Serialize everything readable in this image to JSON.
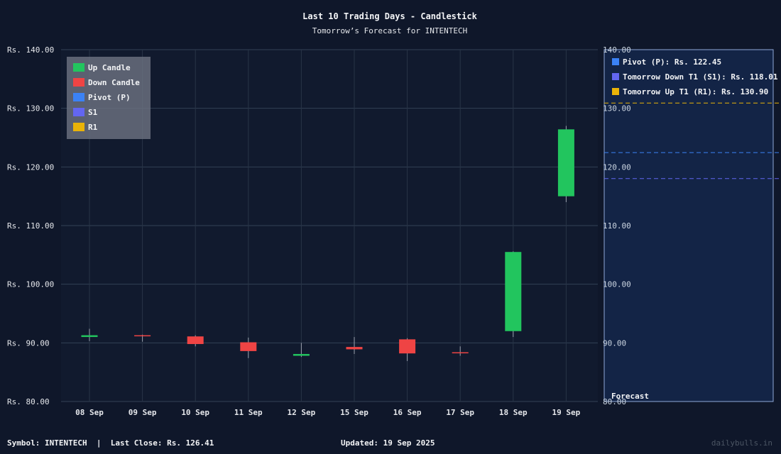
{
  "chart_data": {
    "type": "candlestick",
    "title": "Last 10 Trading Days - Candlestick",
    "subtitle": "Tomorrow’s Forecast for INTENTECH",
    "ylim": [
      80,
      140
    ],
    "yticks": [
      80,
      90,
      100,
      110,
      120,
      130,
      140
    ],
    "y_prefix": "Rs. ",
    "grid": true,
    "candles": [
      {
        "date": "08 Sep",
        "open": 91.0,
        "high": 92.4,
        "low": 90.3,
        "close": 91.3
      },
      {
        "date": "09 Sep",
        "open": 91.3,
        "high": 91.4,
        "low": 90.2,
        "close": 91.2
      },
      {
        "date": "10 Sep",
        "open": 91.1,
        "high": 91.3,
        "low": 89.4,
        "close": 89.8
      },
      {
        "date": "11 Sep",
        "open": 90.1,
        "high": 90.9,
        "low": 87.4,
        "close": 88.6
      },
      {
        "date": "12 Sep",
        "open": 87.8,
        "high": 90.0,
        "low": 87.6,
        "close": 88.1
      },
      {
        "date": "15 Sep",
        "open": 89.3,
        "high": 91.0,
        "low": 88.1,
        "close": 88.9
      },
      {
        "date": "16 Sep",
        "open": 90.6,
        "high": 90.8,
        "low": 86.9,
        "close": 88.2
      },
      {
        "date": "17 Sep",
        "open": 88.4,
        "high": 89.4,
        "low": 87.8,
        "close": 88.3
      },
      {
        "date": "18 Sep",
        "open": 92.0,
        "high": 105.6,
        "low": 91.0,
        "close": 105.5
      },
      {
        "date": "19 Sep",
        "open": 115.0,
        "high": 127.0,
        "low": 114.0,
        "close": 126.41
      }
    ],
    "legend": {
      "placement": "top-left",
      "entries": [
        {
          "label": "Up Candle",
          "color": "#22c55e"
        },
        {
          "label": "Down Candle",
          "color": "#ef4444"
        },
        {
          "label": "Pivot (P)",
          "color": "#3b82f6"
        },
        {
          "label": "S1",
          "color": "#6366f1"
        },
        {
          "label": "R1",
          "color": "#eab308"
        }
      ]
    },
    "forecast": {
      "label": "Forecast",
      "legend_placement": "top-left",
      "levels": [
        {
          "label": "Pivot (P): Rs. 122.45",
          "value": 122.45,
          "color": "#3b82f6"
        },
        {
          "label": "Tomorrow Down T1 (S1): Rs. 118.01",
          "value": 118.01,
          "color": "#6366f1"
        },
        {
          "label": "Tomorrow Up T1 (R1): Rs. 130.90",
          "value": 130.9,
          "color": "#eab308"
        }
      ]
    }
  },
  "footer": {
    "left": "Symbol: INTENTECH  |  Last Close: Rs. 126.41",
    "mid": "Updated: 19 Sep 2025",
    "right": "dailybulls.in"
  }
}
